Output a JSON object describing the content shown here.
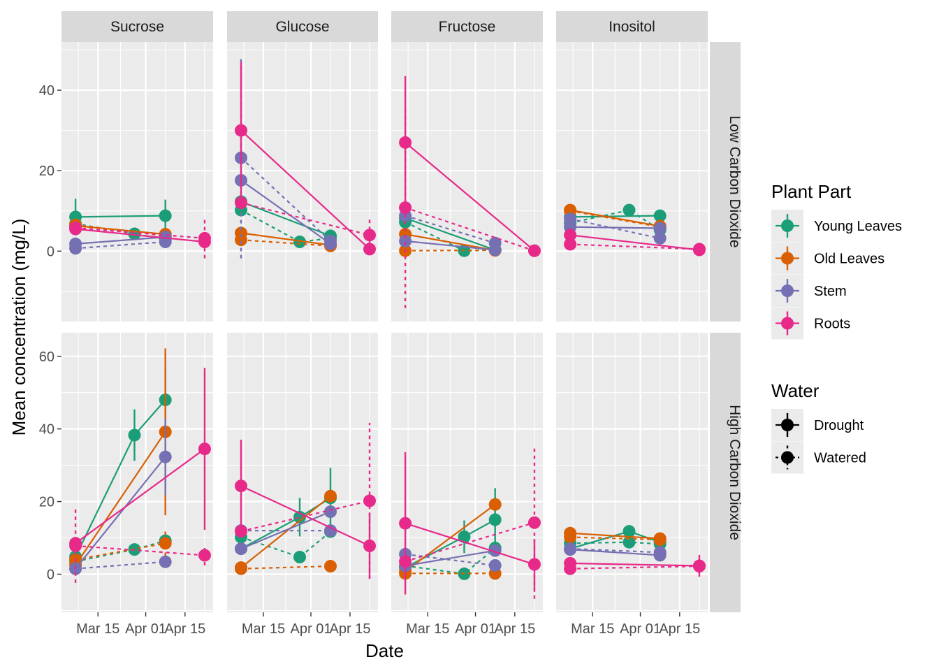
{
  "chart_data": {
    "type": "line",
    "xlabel": "Date",
    "ylabel": "Mean concentration (mg/L)",
    "x_ticks": [
      "Mar 15",
      "Apr 01",
      "Apr 15"
    ],
    "x_dates": [
      "Mar 07",
      "Mar 28",
      "Apr 08",
      "Apr 22"
    ],
    "columns": [
      "Sucrose",
      "Glucose",
      "Fructose",
      "Inositol"
    ],
    "rows": [
      {
        "label": "Low Carbon Dioxide",
        "ylim": [
          -17.5,
          52
        ],
        "yticks": [
          0,
          20,
          40
        ]
      },
      {
        "label": "High Carbon Dioxide",
        "ylim": [
          -10.5,
          66.5
        ],
        "yticks": [
          0,
          20,
          40,
          60
        ]
      }
    ],
    "parts": [
      {
        "name": "Young Leaves",
        "color": "#1B9E77"
      },
      {
        "name": "Old Leaves",
        "color": "#D95F02"
      },
      {
        "name": "Stem",
        "color": "#7570B3"
      },
      {
        "name": "Roots",
        "color": "#E7298A"
      }
    ],
    "water": [
      {
        "name": "Drought",
        "linetype": "solid"
      },
      {
        "name": "Watered",
        "linetype": "dashed"
      }
    ],
    "legend": {
      "part_title": "Plant Part",
      "water_title": "Water",
      "position": "right"
    },
    "series": [
      {
        "panel": [
          0,
          0
        ],
        "part": 0,
        "water": 0,
        "pts": [
          [
            "Mar 07",
            8.5,
            4.5
          ],
          [
            "Apr 08",
            8.8,
            4
          ]
        ]
      },
      {
        "panel": [
          0,
          0
        ],
        "part": 0,
        "water": 1,
        "pts": [
          [
            "Mar 07",
            6.8
          ],
          [
            "Mar 28",
            4.3
          ],
          [
            "Apr 08",
            3
          ]
        ]
      },
      {
        "panel": [
          0,
          0
        ],
        "part": 1,
        "water": 0,
        "pts": [
          [
            "Mar 07",
            6.3
          ],
          [
            "Apr 08",
            4.2
          ]
        ]
      },
      {
        "panel": [
          0,
          0
        ],
        "part": 1,
        "water": 1,
        "pts": [
          [
            "Mar 07",
            6.5
          ],
          [
            "Apr 08",
            3.8
          ]
        ]
      },
      {
        "panel": [
          0,
          0
        ],
        "part": 2,
        "water": 0,
        "pts": [
          [
            "Mar 07",
            1.8
          ],
          [
            "Apr 08",
            3.5
          ]
        ]
      },
      {
        "panel": [
          0,
          0
        ],
        "part": 2,
        "water": 1,
        "pts": [
          [
            "Mar 07",
            0.7
          ],
          [
            "Apr 08",
            2.3
          ]
        ]
      },
      {
        "panel": [
          0,
          0
        ],
        "part": 3,
        "water": 0,
        "pts": [
          [
            "Mar 07",
            5.5
          ],
          [
            "Apr 22",
            2.3
          ]
        ]
      },
      {
        "panel": [
          0,
          0
        ],
        "part": 3,
        "water": 1,
        "pts": [
          [
            "Mar 07",
            5.8
          ],
          [
            "Apr 22",
            3.2,
            5
          ]
        ]
      },
      {
        "panel": [
          0,
          1
        ],
        "part": 0,
        "water": 0,
        "pts": [
          [
            "Mar 07",
            12.3
          ],
          [
            "Apr 08",
            3.8
          ]
        ]
      },
      {
        "panel": [
          0,
          1
        ],
        "part": 0,
        "water": 1,
        "pts": [
          [
            "Mar 07",
            10.2
          ],
          [
            "Mar 28",
            2.3
          ],
          [
            "Apr 08",
            3.2
          ]
        ]
      },
      {
        "panel": [
          0,
          1
        ],
        "part": 1,
        "water": 0,
        "pts": [
          [
            "Mar 07",
            4.5
          ],
          [
            "Apr 08",
            1.5
          ]
        ]
      },
      {
        "panel": [
          0,
          1
        ],
        "part": 1,
        "water": 1,
        "pts": [
          [
            "Mar 07",
            2.8
          ],
          [
            "Apr 08",
            1.3
          ]
        ]
      },
      {
        "panel": [
          0,
          1
        ],
        "part": 2,
        "water": 0,
        "pts": [
          [
            "Mar 07",
            17.6
          ],
          [
            "Apr 08",
            1.8
          ]
        ]
      },
      {
        "panel": [
          0,
          1
        ],
        "part": 2,
        "water": 1,
        "pts": [
          [
            "Mar 07",
            23.2,
            25
          ],
          [
            "Apr 08",
            2.5
          ]
        ]
      },
      {
        "panel": [
          0,
          1
        ],
        "part": 3,
        "water": 0,
        "pts": [
          [
            "Mar 07",
            30,
            17
          ],
          [
            "Apr 22",
            0.5
          ]
        ]
      },
      {
        "panel": [
          0,
          1
        ],
        "part": 3,
        "water": 1,
        "pts": [
          [
            "Mar 07",
            12
          ],
          [
            "Apr 22",
            4,
            4
          ]
        ]
      },
      {
        "panel": [
          0,
          2
        ],
        "part": 0,
        "water": 0,
        "pts": [
          [
            "Mar 07",
            8.2
          ],
          [
            "Apr 08",
            0.3
          ]
        ]
      },
      {
        "panel": [
          0,
          2
        ],
        "part": 0,
        "water": 1,
        "pts": [
          [
            "Mar 07",
            7.2
          ],
          [
            "Mar 28",
            0.1
          ],
          [
            "Apr 08",
            0.3
          ]
        ]
      },
      {
        "panel": [
          0,
          2
        ],
        "part": 1,
        "water": 0,
        "pts": [
          [
            "Mar 07",
            4.2
          ],
          [
            "Apr 08",
            0.2
          ]
        ]
      },
      {
        "panel": [
          0,
          2
        ],
        "part": 1,
        "water": 1,
        "pts": [
          [
            "Mar 07",
            0.1
          ],
          [
            "Apr 08",
            0.2
          ]
        ]
      },
      {
        "panel": [
          0,
          2
        ],
        "part": 2,
        "water": 0,
        "pts": [
          [
            "Mar 07",
            2.5
          ],
          [
            "Apr 08",
            0.3
          ]
        ]
      },
      {
        "panel": [
          0,
          2
        ],
        "part": 2,
        "water": 1,
        "pts": [
          [
            "Mar 07",
            8.8
          ],
          [
            "Apr 08",
            2
          ]
        ]
      },
      {
        "panel": [
          0,
          2
        ],
        "part": 3,
        "water": 0,
        "pts": [
          [
            "Mar 07",
            27,
            16.5
          ],
          [
            "Apr 22",
            0.1
          ]
        ]
      },
      {
        "panel": [
          0,
          2
        ],
        "part": 3,
        "water": 1,
        "pts": [
          [
            "Mar 07",
            10.8,
            25
          ],
          [
            "Apr 22",
            0.1
          ]
        ]
      },
      {
        "panel": [
          0,
          3
        ],
        "part": 0,
        "water": 0,
        "pts": [
          [
            "Mar 07",
            8.5
          ],
          [
            "Apr 08",
            8.8
          ]
        ]
      },
      {
        "panel": [
          0,
          3
        ],
        "part": 0,
        "water": 1,
        "pts": [
          [
            "Mar 07",
            7
          ],
          [
            "Mar 28",
            10.2
          ],
          [
            "Apr 08",
            5.3
          ]
        ]
      },
      {
        "panel": [
          0,
          3
        ],
        "part": 1,
        "water": 0,
        "pts": [
          [
            "Mar 07",
            10.2
          ],
          [
            "Apr 08",
            6.2
          ]
        ]
      },
      {
        "panel": [
          0,
          3
        ],
        "part": 1,
        "water": 1,
        "pts": [
          [
            "Mar 07",
            10
          ],
          [
            "Apr 08",
            6
          ]
        ]
      },
      {
        "panel": [
          0,
          3
        ],
        "part": 2,
        "water": 0,
        "pts": [
          [
            "Mar 07",
            6
          ],
          [
            "Apr 08",
            5.7
          ]
        ]
      },
      {
        "panel": [
          0,
          3
        ],
        "part": 2,
        "water": 1,
        "pts": [
          [
            "Mar 07",
            8
          ],
          [
            "Apr 08",
            3.2
          ]
        ]
      },
      {
        "panel": [
          0,
          3
        ],
        "part": 3,
        "water": 0,
        "pts": [
          [
            "Mar 07",
            4
          ],
          [
            "Apr 22",
            0.3
          ]
        ]
      },
      {
        "panel": [
          0,
          3
        ],
        "part": 3,
        "water": 1,
        "pts": [
          [
            "Mar 07",
            1.7
          ],
          [
            "Apr 22",
            0.5
          ]
        ]
      },
      {
        "panel": [
          1,
          0
        ],
        "part": 0,
        "water": 0,
        "pts": [
          [
            "Mar 07",
            4.8
          ],
          [
            "Mar 28",
            38.3,
            7.1
          ],
          [
            "Apr 08",
            48,
            9
          ]
        ]
      },
      {
        "panel": [
          1,
          0
        ],
        "part": 0,
        "water": 1,
        "pts": [
          [
            "Mar 07",
            3.5
          ],
          [
            "Mar 28",
            6.8
          ],
          [
            "Apr 08",
            9.2
          ]
        ]
      },
      {
        "panel": [
          1,
          0
        ],
        "part": 1,
        "water": 0,
        "pts": [
          [
            "Mar 07",
            2.5
          ],
          [
            "Apr 08",
            39.2,
            23
          ]
        ]
      },
      {
        "panel": [
          1,
          0
        ],
        "part": 1,
        "water": 1,
        "pts": [
          [
            "Mar 07",
            4
          ],
          [
            "Apr 08",
            8.5,
            3.5
          ]
        ]
      },
      {
        "panel": [
          1,
          0
        ],
        "part": 2,
        "water": 0,
        "pts": [
          [
            "Mar 07",
            1.5
          ],
          [
            "Apr 08",
            32.3,
            10.5
          ]
        ]
      },
      {
        "panel": [
          1,
          0
        ],
        "part": 2,
        "water": 1,
        "pts": [
          [
            "Mar 07",
            1.5
          ],
          [
            "Apr 08",
            3.4
          ]
        ]
      },
      {
        "panel": [
          1,
          0
        ],
        "part": 3,
        "water": 0,
        "pts": [
          [
            "Mar 07",
            8.5
          ],
          [
            "Apr 22",
            34.5,
            22.3
          ]
        ]
      },
      {
        "panel": [
          1,
          0
        ],
        "part": 3,
        "water": 1,
        "pts": [
          [
            "Mar 07",
            7.8,
            10.2
          ],
          [
            "Apr 22",
            5.2,
            2.8
          ]
        ]
      },
      {
        "panel": [
          1,
          1
        ],
        "part": 0,
        "water": 0,
        "pts": [
          [
            "Mar 07",
            7
          ],
          [
            "Mar 28",
            15.7,
            5.3
          ],
          [
            "Apr 08",
            21,
            8.3
          ]
        ]
      },
      {
        "panel": [
          1,
          1
        ],
        "part": 0,
        "water": 1,
        "pts": [
          [
            "Mar 07",
            10.2
          ],
          [
            "Mar 28",
            4.7
          ],
          [
            "Apr 08",
            11.7
          ]
        ]
      },
      {
        "panel": [
          1,
          1
        ],
        "part": 1,
        "water": 0,
        "pts": [
          [
            "Mar 07",
            1.8
          ],
          [
            "Apr 08",
            21.5
          ]
        ]
      },
      {
        "panel": [
          1,
          1
        ],
        "part": 1,
        "water": 1,
        "pts": [
          [
            "Mar 07",
            1.5
          ],
          [
            "Apr 08",
            2.2
          ]
        ]
      },
      {
        "panel": [
          1,
          1
        ],
        "part": 2,
        "water": 0,
        "pts": [
          [
            "Mar 07",
            7
          ],
          [
            "Apr 08",
            17.2
          ]
        ]
      },
      {
        "panel": [
          1,
          1
        ],
        "part": 2,
        "water": 1,
        "pts": [
          [
            "Mar 07",
            12
          ],
          [
            "Apr 08",
            12
          ]
        ]
      },
      {
        "panel": [
          1,
          1
        ],
        "part": 3,
        "water": 0,
        "pts": [
          [
            "Mar 07",
            24.3,
            12.7
          ],
          [
            "Apr 22",
            7.8,
            9
          ]
        ]
      },
      {
        "panel": [
          1,
          1
        ],
        "part": 3,
        "water": 1,
        "pts": [
          [
            "Mar 07",
            11.8
          ],
          [
            "Apr 22",
            20.2,
            21.5
          ]
        ]
      },
      {
        "panel": [
          1,
          2
        ],
        "part": 0,
        "water": 0,
        "pts": [
          [
            "Mar 07",
            1.8
          ],
          [
            "Mar 28",
            10.3,
            4.5
          ],
          [
            "Apr 08",
            15,
            8.7
          ]
        ]
      },
      {
        "panel": [
          1,
          2
        ],
        "part": 0,
        "water": 1,
        "pts": [
          [
            "Mar 07",
            2.3
          ],
          [
            "Mar 28",
            0.1
          ],
          [
            "Apr 08",
            7.2
          ]
        ]
      },
      {
        "panel": [
          1,
          2
        ],
        "part": 1,
        "water": 0,
        "pts": [
          [
            "Mar 07",
            0.8
          ],
          [
            "Apr 08",
            19.2
          ]
        ]
      },
      {
        "panel": [
          1,
          2
        ],
        "part": 1,
        "water": 1,
        "pts": [
          [
            "Mar 07",
            0.2
          ],
          [
            "Apr 08",
            0.2
          ]
        ]
      },
      {
        "panel": [
          1,
          2
        ],
        "part": 2,
        "water": 0,
        "pts": [
          [
            "Mar 07",
            2.3
          ],
          [
            "Apr 08",
            6.5
          ]
        ]
      },
      {
        "panel": [
          1,
          2
        ],
        "part": 2,
        "water": 1,
        "pts": [
          [
            "Mar 07",
            5.5
          ],
          [
            "Apr 08",
            2.4
          ]
        ]
      },
      {
        "panel": [
          1,
          2
        ],
        "part": 3,
        "water": 0,
        "pts": [
          [
            "Mar 07",
            14,
            19.6
          ],
          [
            "Apr 22",
            2.7,
            7
          ]
        ]
      },
      {
        "panel": [
          1,
          2
        ],
        "part": 3,
        "water": 1,
        "pts": [
          [
            "Mar 07",
            3.5
          ],
          [
            "Apr 22",
            14.2,
            21
          ]
        ]
      },
      {
        "panel": [
          1,
          3
        ],
        "part": 0,
        "water": 0,
        "pts": [
          [
            "Mar 07",
            7
          ],
          [
            "Mar 28",
            11.8
          ],
          [
            "Apr 08",
            8.8
          ]
        ]
      },
      {
        "panel": [
          1,
          3
        ],
        "part": 0,
        "water": 1,
        "pts": [
          [
            "Mar 07",
            8.5
          ],
          [
            "Mar 28",
            8.8
          ],
          [
            "Apr 08",
            8.3
          ]
        ]
      },
      {
        "panel": [
          1,
          3
        ],
        "part": 1,
        "water": 0,
        "pts": [
          [
            "Mar 07",
            11.3
          ],
          [
            "Apr 08",
            9.8
          ]
        ]
      },
      {
        "panel": [
          1,
          3
        ],
        "part": 1,
        "water": 1,
        "pts": [
          [
            "Mar 07",
            10.2
          ],
          [
            "Apr 08",
            9.5
          ]
        ]
      },
      {
        "panel": [
          1,
          3
        ],
        "part": 2,
        "water": 0,
        "pts": [
          [
            "Mar 07",
            6.8
          ],
          [
            "Apr 08",
            5.2
          ]
        ]
      },
      {
        "panel": [
          1,
          3
        ],
        "part": 2,
        "water": 1,
        "pts": [
          [
            "Mar 07",
            7
          ],
          [
            "Apr 08",
            6
          ]
        ]
      },
      {
        "panel": [
          1,
          3
        ],
        "part": 3,
        "water": 0,
        "pts": [
          [
            "Mar 07",
            3
          ],
          [
            "Apr 22",
            2.3,
            3
          ]
        ]
      },
      {
        "panel": [
          1,
          3
        ],
        "part": 3,
        "water": 1,
        "pts": [
          [
            "Mar 07",
            1.5
          ],
          [
            "Apr 22",
            2.2
          ]
        ]
      }
    ]
  }
}
